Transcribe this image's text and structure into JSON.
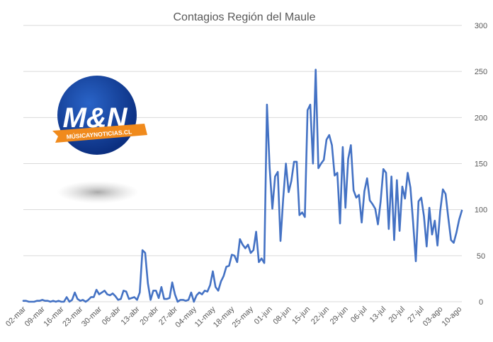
{
  "chart_data": {
    "type": "line",
    "title": "Contagios Región del Maule",
    "xlabel": "",
    "ylabel": "",
    "ylim": [
      0,
      300
    ],
    "yticks": [
      0,
      50,
      100,
      150,
      200,
      250,
      300
    ],
    "y_axis_side": "right",
    "grid": true,
    "legend": "none",
    "color": "#4472c4",
    "x_tick_labels": [
      "02-mar",
      "09-mar",
      "16-mar",
      "23-mar",
      "30-mar",
      "06-abr",
      "13-abr",
      "20-abr",
      "27-abr",
      "04-may",
      "11-may",
      "18-may",
      "25-may",
      "01-jun",
      "08-jun",
      "15-jun",
      "22-jun",
      "29-jun",
      "06-jul",
      "13-jul",
      "20-jul",
      "27-jul",
      "03-ago",
      "10-ago"
    ],
    "x_tick_step_days": 7,
    "x_start": "02-mar",
    "x_end": "16-ago",
    "series": [
      {
        "values": [
          1,
          1,
          0,
          0,
          0,
          1,
          1,
          2,
          1,
          1,
          0,
          1,
          0,
          1,
          0,
          0,
          5,
          0,
          2,
          10,
          3,
          1,
          2,
          0,
          2,
          5,
          5,
          13,
          8,
          10,
          12,
          8,
          7,
          9,
          6,
          2,
          3,
          12,
          11,
          3,
          4,
          5,
          2,
          10,
          56,
          53,
          20,
          2,
          12,
          12,
          4,
          16,
          3,
          3,
          4,
          21,
          8,
          0,
          2,
          2,
          1,
          2,
          10,
          0,
          7,
          10,
          8,
          12,
          11,
          18,
          33,
          16,
          12,
          22,
          28,
          38,
          39,
          51,
          50,
          43,
          68,
          62,
          58,
          62,
          53,
          56,
          76,
          43,
          47,
          42,
          214,
          145,
          101,
          136,
          141,
          66,
          112,
          150,
          119,
          131,
          152,
          152,
          94,
          97,
          92,
          208,
          214,
          150,
          252,
          145,
          150,
          154,
          176,
          181,
          170,
          137,
          140,
          85,
          168,
          102,
          155,
          170,
          121,
          113,
          116,
          86,
          120,
          134,
          110,
          106,
          101,
          84,
          109,
          144,
          140,
          79,
          136,
          67,
          132,
          77,
          125,
          112,
          140,
          124,
          86,
          44,
          109,
          113,
          93,
          60,
          102,
          73,
          88,
          61,
          98,
          122,
          117,
          91,
          67,
          64,
          75,
          89,
          99
        ]
      }
    ]
  },
  "logo": {
    "text": "M&N",
    "ribbon": "MÚSICAYNOTICIAS.CL"
  }
}
